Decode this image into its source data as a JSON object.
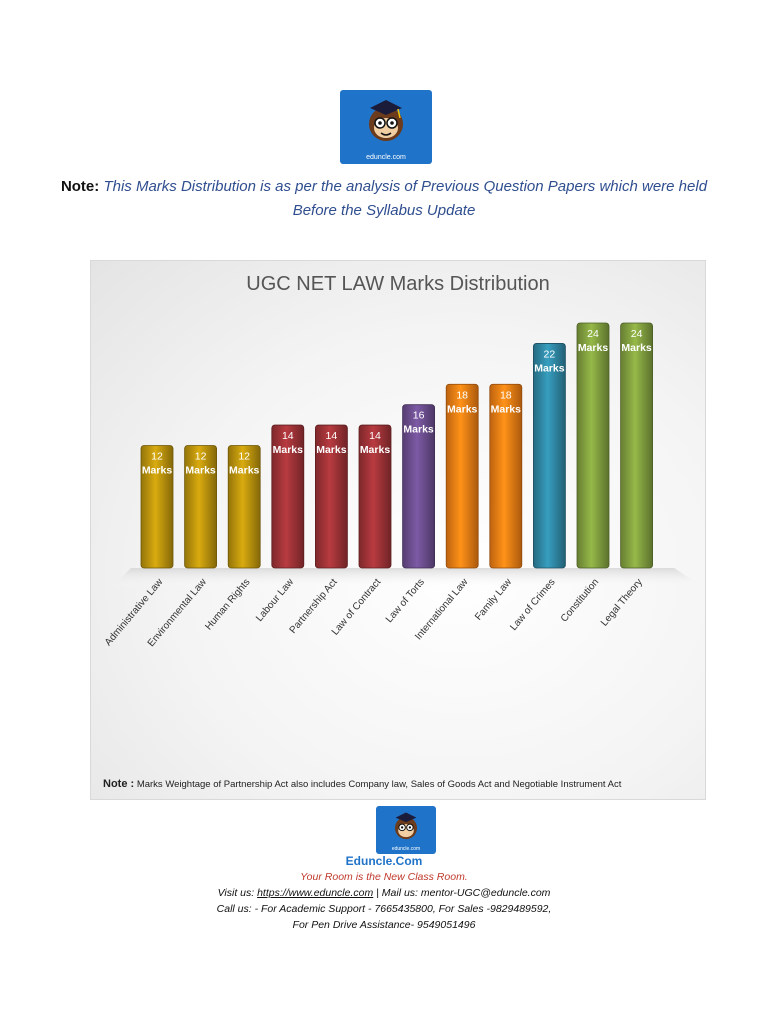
{
  "logo_text": "eduncle.com",
  "note": {
    "label": "Note:",
    "text": "This Marks Distribution is as per the analysis of Previous Question Papers which were held Before the Syllabus Update"
  },
  "chart_note": {
    "label": "Note :",
    "text": "Marks Weightage of Partnership Act also includes Company law, Sales of Goods Act and Negotiable Instrument Act"
  },
  "chart_data": {
    "type": "bar",
    "title": "UGC NET LAW Marks Distribution",
    "xlabel": "",
    "ylabel": "",
    "unit": "Marks",
    "ylim": [
      0,
      24
    ],
    "grid": false,
    "categories": [
      "Administrative Law",
      "Environmental Law",
      "Human Rights",
      "Labour Law",
      "Partnership Act",
      "Law of Contract",
      "Law of Torts",
      "International Law",
      "Family Law",
      "Law of Crimes",
      "Constitution",
      "Legal Theory"
    ],
    "values": [
      12,
      12,
      12,
      14,
      14,
      14,
      16,
      18,
      18,
      22,
      24,
      24
    ],
    "colors": [
      "#b8910d",
      "#b8910d",
      "#b8910d",
      "#9c3236",
      "#9c3236",
      "#9c3236",
      "#6a4c8c",
      "#ee7c14",
      "#ee7c14",
      "#2f86a2",
      "#7f9d3e",
      "#7f9d3e"
    ]
  },
  "footer": {
    "brand": "Eduncle.Com",
    "tagline": "Your Room is the New Class Room.",
    "visit_label": "Visit us:",
    "visit_url": "https://www.eduncle.com",
    "mail_label": "| Mail us: mentor-UGC@eduncle.com",
    "call_line": "Call us: - For Academic Support - 7665435800, For Sales -9829489592,",
    "pendrive_line": "For Pen Drive Assistance- 9549051496"
  }
}
